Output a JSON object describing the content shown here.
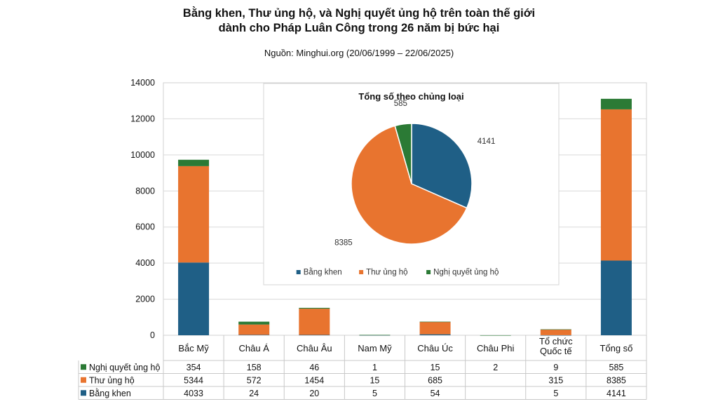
{
  "header": {
    "title_line1": "Bằng khen, Thư ủng hộ, và Nghị quyết ủng hộ trên toàn thế giới",
    "title_line2": "dành cho Pháp Luân Công trong 26 năm bị bức hại",
    "source": "Nguồn: Minghui.org (20/06/1999 – 22/06/2025)"
  },
  "chart_data": [
    {
      "type": "bar",
      "stacked": true,
      "categories": [
        "Bắc Mỹ",
        "Châu Á",
        "Châu Âu",
        "Nam Mỹ",
        "Châu Úc",
        "Châu Phi",
        "Tổ chức\nQuốc tế",
        "Tổng số"
      ],
      "series": [
        {
          "name": "Bằng khen",
          "color": "#1f5f86",
          "values": [
            4033,
            24,
            20,
            5,
            54,
            null,
            5,
            4141
          ]
        },
        {
          "name": "Thư ủng hộ",
          "color": "#e8742f",
          "values": [
            5344,
            572,
            1454,
            15,
            685,
            null,
            315,
            8385
          ]
        },
        {
          "name": "Nghị quyết ủng hộ",
          "color": "#2b7a35",
          "values": [
            354,
            158,
            46,
            1,
            15,
            2,
            9,
            585
          ]
        }
      ],
      "y_ticks": [
        "0",
        "2000",
        "4000",
        "6000",
        "8000",
        "10000",
        "12000",
        "14000"
      ],
      "ylim": [
        0,
        14000
      ],
      "grid": "horizontal",
      "table_rows_order": [
        "Nghị quyết ủng hộ",
        "Thư ủng hộ",
        "Bằng khen"
      ]
    },
    {
      "type": "pie",
      "title": "Tổng số theo chủng loại",
      "slices": [
        {
          "name": "Bằng khen",
          "value": 4141,
          "label": "4141",
          "color": "#1f5f86"
        },
        {
          "name": "Thư ủng hộ",
          "value": 8385,
          "label": "8385",
          "color": "#e8742f"
        },
        {
          "name": "Nghị quyết ủng hộ",
          "value": 585,
          "label": "585",
          "color": "#2b7a35"
        }
      ],
      "legend_position": "bottom"
    }
  ]
}
